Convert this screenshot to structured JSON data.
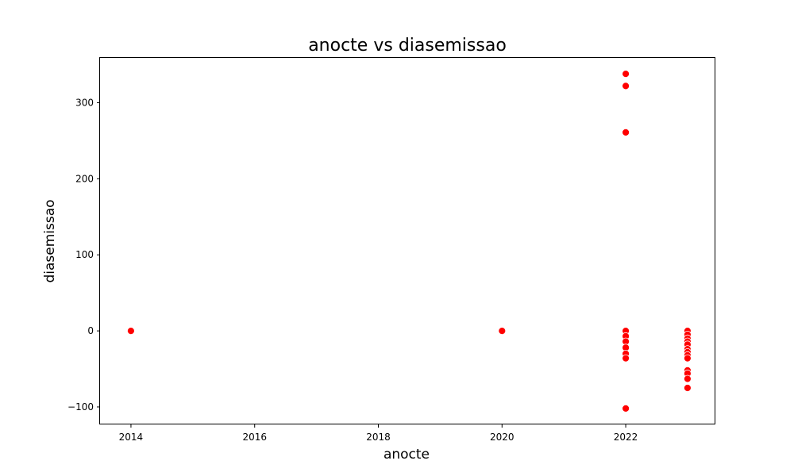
{
  "chart_data": {
    "type": "scatter",
    "title": "anocte vs diasemissao",
    "xlabel": "anocte",
    "ylabel": "diasemissao",
    "xlim": [
      2013.5,
      2023.45
    ],
    "ylim": [
      -123,
      360
    ],
    "xticks": [
      2014,
      2016,
      2018,
      2020,
      2022
    ],
    "xtick_labels": [
      "2014",
      "2016",
      "2018",
      "2020",
      "2022"
    ],
    "yticks": [
      -100,
      0,
      100,
      200,
      300
    ],
    "ytick_labels": [
      "−100",
      "0",
      "100",
      "200",
      "300"
    ],
    "grid": false,
    "marker_color": "#ff0000",
    "points": [
      {
        "x": 2014,
        "y": 0
      },
      {
        "x": 2020,
        "y": 0
      },
      {
        "x": 2022,
        "y": 338
      },
      {
        "x": 2022,
        "y": 322
      },
      {
        "x": 2022,
        "y": 261
      },
      {
        "x": 2022,
        "y": 0
      },
      {
        "x": 2022,
        "y": -7
      },
      {
        "x": 2022,
        "y": -14
      },
      {
        "x": 2022,
        "y": -22
      },
      {
        "x": 2022,
        "y": -30
      },
      {
        "x": 2022,
        "y": -36
      },
      {
        "x": 2022,
        "y": -102
      },
      {
        "x": 2023,
        "y": 0
      },
      {
        "x": 2023,
        "y": -5
      },
      {
        "x": 2023,
        "y": -10
      },
      {
        "x": 2023,
        "y": -14
      },
      {
        "x": 2023,
        "y": -18
      },
      {
        "x": 2023,
        "y": -24
      },
      {
        "x": 2023,
        "y": -28
      },
      {
        "x": 2023,
        "y": -32
      },
      {
        "x": 2023,
        "y": -36
      },
      {
        "x": 2023,
        "y": -52
      },
      {
        "x": 2023,
        "y": -56
      },
      {
        "x": 2023,
        "y": -63
      },
      {
        "x": 2023,
        "y": -75
      }
    ]
  }
}
